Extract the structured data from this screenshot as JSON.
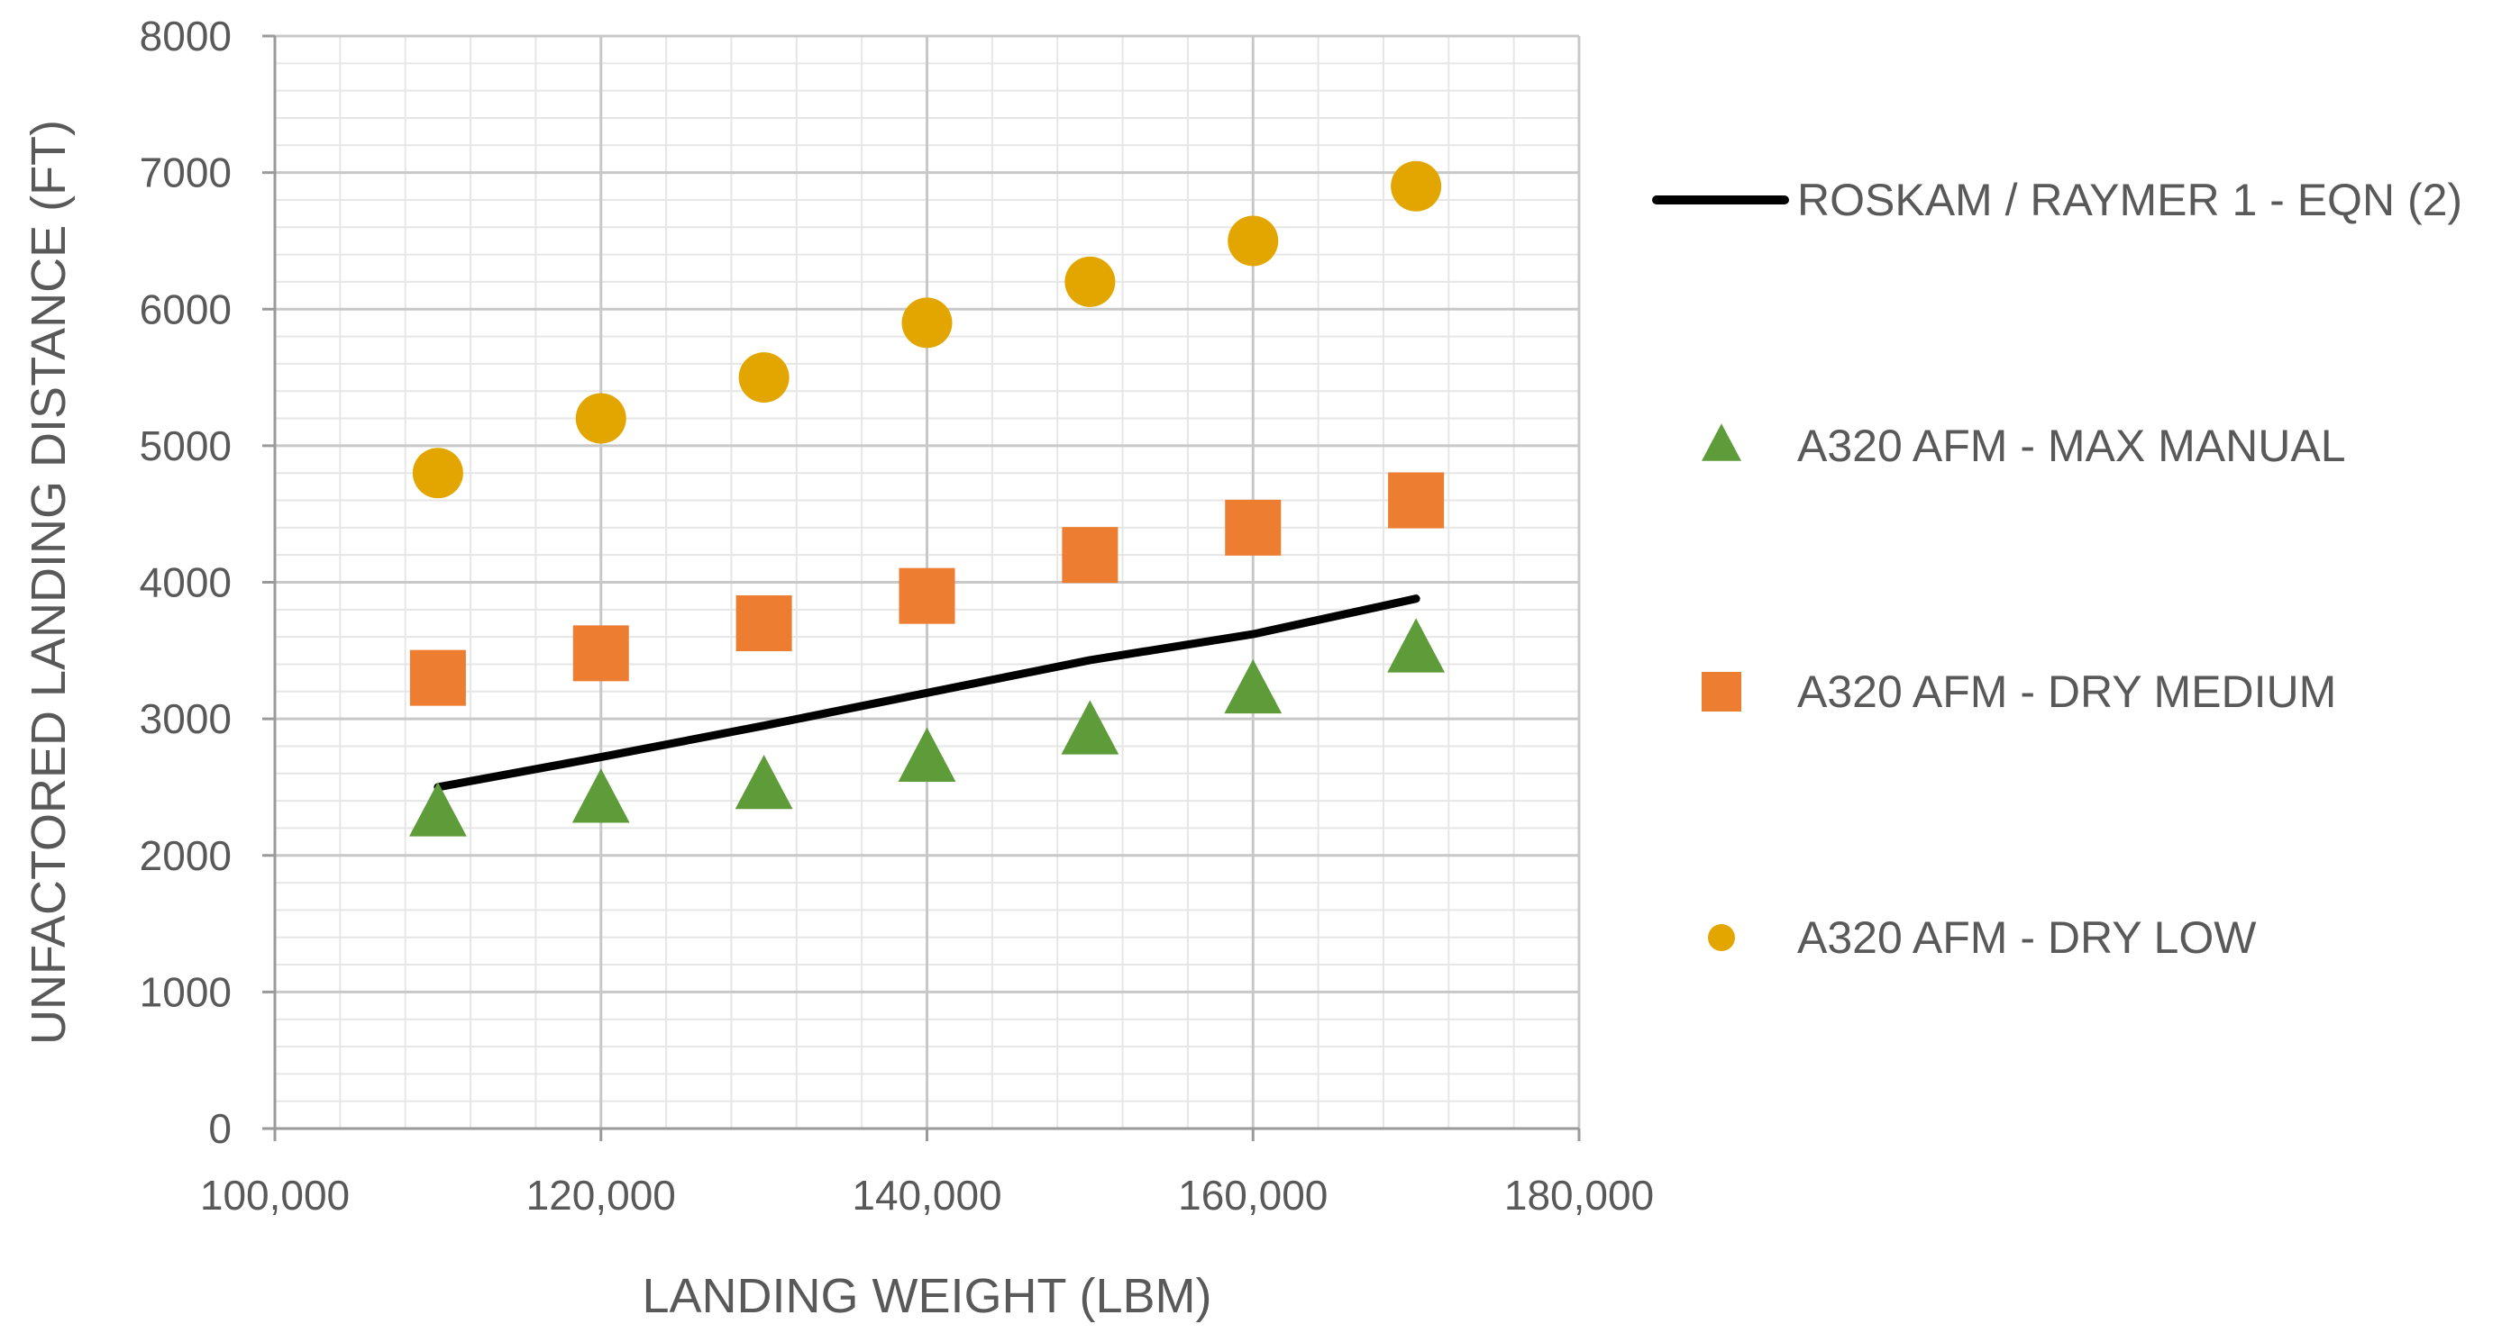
{
  "chart_data": {
    "type": "scatter",
    "xlabel": "LANDING WEIGHT (LBM)",
    "ylabel": "UNFACTORED LANDING DISTANCE (FT)",
    "xlim": [
      100000,
      180000
    ],
    "ylim": [
      0,
      8000
    ],
    "x_ticks": [
      100000,
      120000,
      140000,
      160000,
      180000
    ],
    "x_tick_labels": [
      "100,000",
      "120,000",
      "140,000",
      "160,000",
      "180,000"
    ],
    "y_ticks": [
      0,
      1000,
      2000,
      3000,
      4000,
      5000,
      6000,
      7000,
      8000
    ],
    "y_tick_labels": [
      "0",
      "1000",
      "2000",
      "3000",
      "4000",
      "5000",
      "6000",
      "7000",
      "8000"
    ],
    "grid": true,
    "legend_position": "right",
    "x": [
      110000,
      120000,
      130000,
      140000,
      150000,
      160000,
      170000
    ],
    "series": [
      {
        "name": "ROSKAM / RAYMER 1 - EQN (2)",
        "style": "line",
        "marker": "none",
        "color": "#000000",
        "values": [
          2500,
          2720,
          2950,
          3190,
          3430,
          3620,
          3880
        ]
      },
      {
        "name": "A320 AFM - MAX MANUAL",
        "style": "marker",
        "marker": "triangle",
        "color": "#5e9c3a",
        "values": [
          2300,
          2400,
          2500,
          2700,
          2900,
          3200,
          3500
        ]
      },
      {
        "name": "A320 AFM  - DRY MEDIUM",
        "style": "marker",
        "marker": "square",
        "color": "#ed7d31",
        "values": [
          3300,
          3480,
          3700,
          3900,
          4200,
          4400,
          4600
        ]
      },
      {
        "name": "A320 AFM  - DRY LOW",
        "style": "marker",
        "marker": "circle",
        "color": "#e3a600",
        "values": [
          4800,
          5200,
          5500,
          5900,
          6200,
          6500,
          6900
        ]
      }
    ]
  }
}
